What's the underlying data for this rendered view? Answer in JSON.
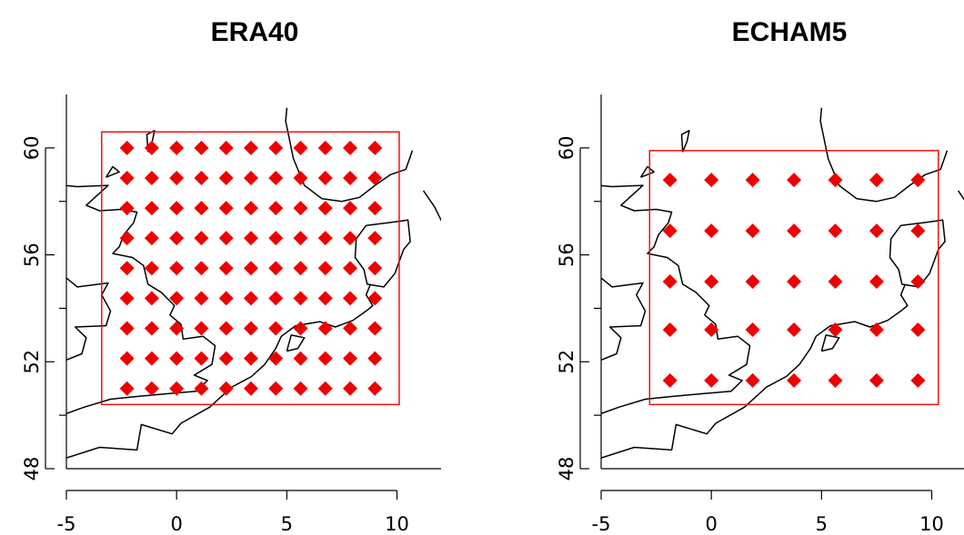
{
  "chart_data": [
    {
      "type": "scatter",
      "title": "ERA40",
      "xlabel": "",
      "ylabel": "",
      "xlim": [
        -5,
        12
      ],
      "ylim": [
        48,
        62
      ],
      "xticks": [
        -5,
        0,
        5,
        10
      ],
      "yticks": [
        48,
        52,
        56,
        60
      ],
      "domain_box": {
        "lon": [
          -3.4,
          10.1
        ],
        "lat": [
          50.4,
          60.6
        ]
      },
      "grid": {
        "lons": [
          -2.25,
          -1.125,
          0.0,
          1.125,
          2.25,
          3.375,
          4.5,
          5.625,
          6.75,
          7.875,
          9.0
        ],
        "lats": [
          51.0,
          52.125,
          53.25,
          54.375,
          55.5,
          56.625,
          57.75,
          58.875,
          60.0
        ]
      }
    },
    {
      "type": "scatter",
      "title": "ECHAM5",
      "xlabel": "",
      "ylabel": "",
      "xlim": [
        -5,
        12
      ],
      "ylim": [
        48,
        62
      ],
      "xticks": [
        -5,
        0,
        5,
        10
      ],
      "yticks": [
        48,
        52,
        56,
        60
      ],
      "domain_box": {
        "lon": [
          -2.8,
          10.3
        ],
        "lat": [
          50.4,
          59.9
        ]
      },
      "grid": {
        "lons": [
          -1.875,
          0.0,
          1.875,
          3.75,
          5.625,
          7.5,
          9.375
        ],
        "lats": [
          51.3,
          53.2,
          55.0,
          56.9,
          58.8
        ]
      }
    }
  ]
}
